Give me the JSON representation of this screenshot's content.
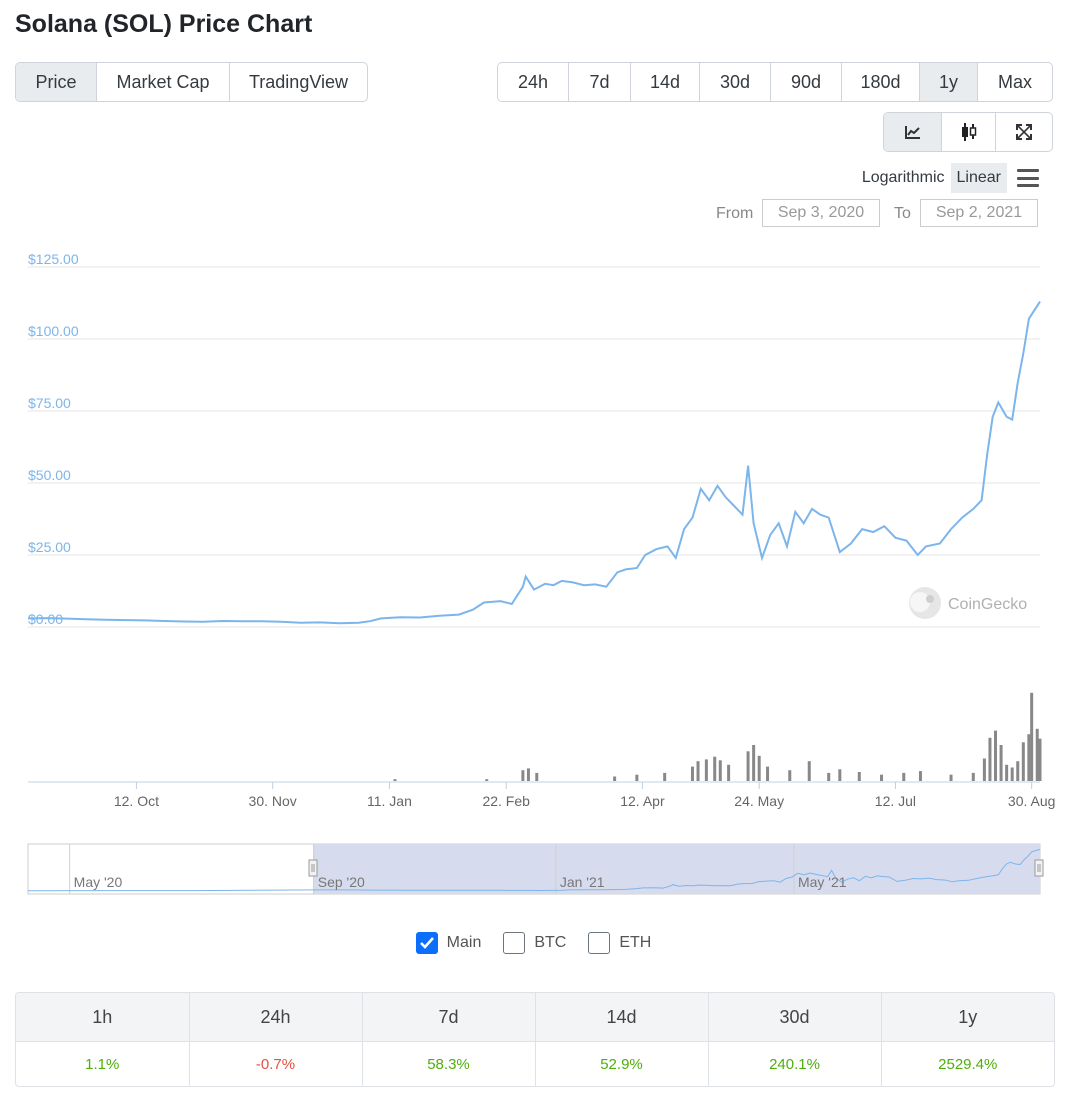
{
  "page": {
    "title": "Solana (SOL) Price Chart"
  },
  "view_tabs": [
    {
      "label": "Price",
      "active": true
    },
    {
      "label": "Market Cap",
      "active": false
    },
    {
      "label": "TradingView",
      "active": false
    }
  ],
  "range_tabs": [
    {
      "label": "24h",
      "active": false
    },
    {
      "label": "7d",
      "active": false
    },
    {
      "label": "14d",
      "active": false
    },
    {
      "label": "30d",
      "active": false
    },
    {
      "label": "90d",
      "active": false
    },
    {
      "label": "180d",
      "active": false
    },
    {
      "label": "1y",
      "active": true
    },
    {
      "label": "Max",
      "active": false
    }
  ],
  "chart_tools": [
    {
      "icon": "line-chart-icon",
      "active": true
    },
    {
      "icon": "candlestick-icon",
      "active": false
    },
    {
      "icon": "fullscreen-icon",
      "active": false
    }
  ],
  "scale": {
    "logarithmic_label": "Logarithmic",
    "linear_label": "Linear",
    "selected": "Linear",
    "menu_icon": "hamburger-menu-icon"
  },
  "date_range": {
    "from_label": "From",
    "from_value": "Sep 3, 2020",
    "to_label": "To",
    "to_value": "Sep 2, 2021"
  },
  "watermark": "CoinGecko",
  "navigator": {
    "labels": [
      "May '20",
      "Sep '20",
      "Jan '21",
      "May '21"
    ]
  },
  "compare": [
    {
      "label": "Main",
      "checked": true
    },
    {
      "label": "BTC",
      "checked": false
    },
    {
      "label": "ETH",
      "checked": false
    }
  ],
  "colors": {
    "line": "#7cb5ec",
    "volume": "#888888",
    "positive": "#4eaf0a",
    "negative": "#e15241",
    "nav_fill": "#d6dcee"
  },
  "stats": {
    "headers": [
      "1h",
      "24h",
      "7d",
      "14d",
      "30d",
      "1y"
    ],
    "values": [
      {
        "text": "1.1%",
        "trend": "pos"
      },
      {
        "text": "-0.7%",
        "trend": "neg"
      },
      {
        "text": "58.3%",
        "trend": "pos"
      },
      {
        "text": "52.9%",
        "trend": "pos"
      },
      {
        "text": "240.1%",
        "trend": "pos"
      },
      {
        "text": "2529.4%",
        "trend": "pos"
      }
    ]
  },
  "chart_data": {
    "type": "line",
    "title": "",
    "xlabel": "",
    "ylabel": "",
    "ylim": [
      0,
      125
    ],
    "y_ticks": [
      {
        "value": 0,
        "label": "$0.00"
      },
      {
        "value": 25,
        "label": "$25.00"
      },
      {
        "value": 50,
        "label": "$50.00"
      },
      {
        "value": 75,
        "label": "$75.00"
      },
      {
        "value": 100,
        "label": "$100.00"
      },
      {
        "value": 125,
        "label": "$125.00"
      }
    ],
    "x_range": [
      "2020-09-03",
      "2021-09-02"
    ],
    "x_ticks": [
      {
        "date": "2020-10-12",
        "label": "12. Oct"
      },
      {
        "date": "2020-11-30",
        "label": "30. Nov"
      },
      {
        "date": "2021-01-11",
        "label": "11. Jan"
      },
      {
        "date": "2021-02-22",
        "label": "22. Feb"
      },
      {
        "date": "2021-04-12",
        "label": "12. Apr"
      },
      {
        "date": "2021-05-24",
        "label": "24. May"
      },
      {
        "date": "2021-07-12",
        "label": "12. Jul"
      },
      {
        "date": "2021-08-30",
        "label": "30. Aug"
      }
    ],
    "grid": true,
    "series": [
      {
        "points": [
          [
            "2020-09-03",
            3.0
          ],
          [
            "2020-09-10",
            3.1
          ],
          [
            "2020-09-17",
            2.9
          ],
          [
            "2020-09-24",
            2.7
          ],
          [
            "2020-10-01",
            2.5
          ],
          [
            "2020-10-08",
            2.4
          ],
          [
            "2020-10-15",
            2.3
          ],
          [
            "2020-10-22",
            2.1
          ],
          [
            "2020-10-29",
            1.9
          ],
          [
            "2020-11-05",
            1.8
          ],
          [
            "2020-11-12",
            2.1
          ],
          [
            "2020-11-19",
            2.0
          ],
          [
            "2020-11-26",
            2.0
          ],
          [
            "2020-12-03",
            1.8
          ],
          [
            "2020-12-10",
            1.5
          ],
          [
            "2020-12-17",
            1.6
          ],
          [
            "2020-12-24",
            1.3
          ],
          [
            "2020-12-31",
            1.5
          ],
          [
            "2021-01-04",
            2.0
          ],
          [
            "2021-01-08",
            3.0
          ],
          [
            "2021-01-15",
            3.4
          ],
          [
            "2021-01-22",
            3.3
          ],
          [
            "2021-01-29",
            3.9
          ],
          [
            "2021-02-05",
            4.3
          ],
          [
            "2021-02-10",
            6.0
          ],
          [
            "2021-02-14",
            8.5
          ],
          [
            "2021-02-20",
            9.0
          ],
          [
            "2021-02-24",
            8.0
          ],
          [
            "2021-02-28",
            14.0
          ],
          [
            "2021-03-01",
            17.5
          ],
          [
            "2021-03-04",
            13.0
          ],
          [
            "2021-03-08",
            15.0
          ],
          [
            "2021-03-11",
            14.5
          ],
          [
            "2021-03-14",
            16.0
          ],
          [
            "2021-03-18",
            15.5
          ],
          [
            "2021-03-22",
            14.5
          ],
          [
            "2021-03-26",
            14.8
          ],
          [
            "2021-03-30",
            14.0
          ],
          [
            "2021-04-03",
            19.0
          ],
          [
            "2021-04-06",
            20.0
          ],
          [
            "2021-04-10",
            20.5
          ],
          [
            "2021-04-13",
            25.0
          ],
          [
            "2021-04-17",
            27.0
          ],
          [
            "2021-04-21",
            28.0
          ],
          [
            "2021-04-24",
            24.0
          ],
          [
            "2021-04-27",
            34.0
          ],
          [
            "2021-04-30",
            38.0
          ],
          [
            "2021-05-03",
            48.0
          ],
          [
            "2021-05-06",
            44.0
          ],
          [
            "2021-05-09",
            49.0
          ],
          [
            "2021-05-12",
            45.0
          ],
          [
            "2021-05-15",
            42.0
          ],
          [
            "2021-05-18",
            39.0
          ],
          [
            "2021-05-20",
            56.0
          ],
          [
            "2021-05-22",
            36.0
          ],
          [
            "2021-05-25",
            24.0
          ],
          [
            "2021-05-28",
            32.0
          ],
          [
            "2021-05-31",
            36.0
          ],
          [
            "2021-06-03",
            28.0
          ],
          [
            "2021-06-06",
            40.0
          ],
          [
            "2021-06-09",
            36.0
          ],
          [
            "2021-06-12",
            41.0
          ],
          [
            "2021-06-15",
            39.0
          ],
          [
            "2021-06-18",
            38.0
          ],
          [
            "2021-06-22",
            26.0
          ],
          [
            "2021-06-26",
            29.0
          ],
          [
            "2021-06-30",
            34.0
          ],
          [
            "2021-07-04",
            33.0
          ],
          [
            "2021-07-08",
            35.0
          ],
          [
            "2021-07-12",
            31.0
          ],
          [
            "2021-07-16",
            30.0
          ],
          [
            "2021-07-20",
            25.0
          ],
          [
            "2021-07-23",
            28.0
          ],
          [
            "2021-07-28",
            29.0
          ],
          [
            "2021-08-01",
            34.0
          ],
          [
            "2021-08-05",
            38.0
          ],
          [
            "2021-08-09",
            41.0
          ],
          [
            "2021-08-12",
            44.0
          ],
          [
            "2021-08-14",
            60.0
          ],
          [
            "2021-08-16",
            73.0
          ],
          [
            "2021-08-18",
            78.0
          ],
          [
            "2021-08-21",
            73.0
          ],
          [
            "2021-08-23",
            72.0
          ],
          [
            "2021-08-25",
            85.0
          ],
          [
            "2021-08-27",
            95.0
          ],
          [
            "2021-08-29",
            107.0
          ],
          [
            "2021-08-31",
            110.0
          ],
          [
            "2021-09-02",
            113.0
          ]
        ]
      }
    ],
    "volume": [
      [
        "2021-01-13",
        0.02
      ],
      [
        "2021-02-15",
        0.02
      ],
      [
        "2021-02-28",
        0.12
      ],
      [
        "2021-03-02",
        0.14
      ],
      [
        "2021-03-05",
        0.09
      ],
      [
        "2021-04-02",
        0.05
      ],
      [
        "2021-04-10",
        0.07
      ],
      [
        "2021-04-20",
        0.09
      ],
      [
        "2021-04-30",
        0.16
      ],
      [
        "2021-05-02",
        0.22
      ],
      [
        "2021-05-05",
        0.24
      ],
      [
        "2021-05-08",
        0.27
      ],
      [
        "2021-05-10",
        0.23
      ],
      [
        "2021-05-13",
        0.18
      ],
      [
        "2021-05-20",
        0.33
      ],
      [
        "2021-05-22",
        0.4
      ],
      [
        "2021-05-24",
        0.28
      ],
      [
        "2021-05-27",
        0.16
      ],
      [
        "2021-06-04",
        0.12
      ],
      [
        "2021-06-11",
        0.22
      ],
      [
        "2021-06-18",
        0.09
      ],
      [
        "2021-06-22",
        0.13
      ],
      [
        "2021-06-29",
        0.1
      ],
      [
        "2021-07-07",
        0.07
      ],
      [
        "2021-07-15",
        0.09
      ],
      [
        "2021-07-21",
        0.11
      ],
      [
        "2021-08-01",
        0.07
      ],
      [
        "2021-08-09",
        0.09
      ],
      [
        "2021-08-13",
        0.25
      ],
      [
        "2021-08-15",
        0.48
      ],
      [
        "2021-08-17",
        0.56
      ],
      [
        "2021-08-19",
        0.4
      ],
      [
        "2021-08-21",
        0.18
      ],
      [
        "2021-08-23",
        0.15
      ],
      [
        "2021-08-25",
        0.22
      ],
      [
        "2021-08-27",
        0.43
      ],
      [
        "2021-08-29",
        0.52
      ],
      [
        "2021-08-30",
        0.98
      ],
      [
        "2021-09-01",
        0.58
      ],
      [
        "2021-09-02",
        0.47
      ]
    ]
  }
}
